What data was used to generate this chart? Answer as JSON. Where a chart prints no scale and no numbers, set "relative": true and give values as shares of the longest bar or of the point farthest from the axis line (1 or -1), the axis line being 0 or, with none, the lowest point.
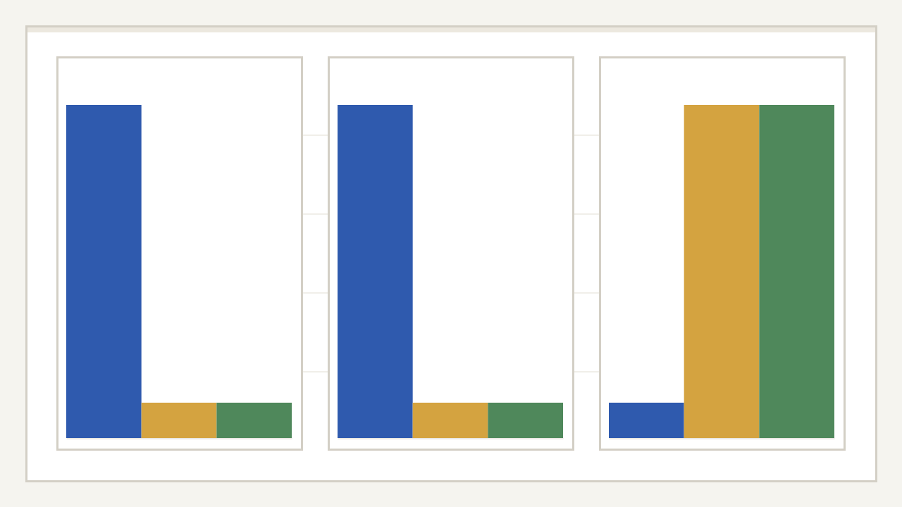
{
  "chart_data": [
    {
      "type": "bar",
      "relative": true,
      "categories": [
        null,
        null,
        null
      ],
      "values": [
        1,
        0.106,
        0.106
      ],
      "colors": [
        "#2f5aae",
        "#d4a340",
        "#4f885b"
      ]
    },
    {
      "type": "bar",
      "relative": true,
      "categories": [
        null,
        null,
        null
      ],
      "values": [
        1,
        0.106,
        0.106
      ],
      "colors": [
        "#2f5aae",
        "#d4a340",
        "#4f885b"
      ]
    },
    {
      "type": "bar",
      "relative": true,
      "categories": [
        null,
        null,
        null
      ],
      "values": [
        0.106,
        1,
        1
      ],
      "colors": [
        "#2f5aae",
        "#d4a340",
        "#4f885b"
      ]
    }
  ]
}
